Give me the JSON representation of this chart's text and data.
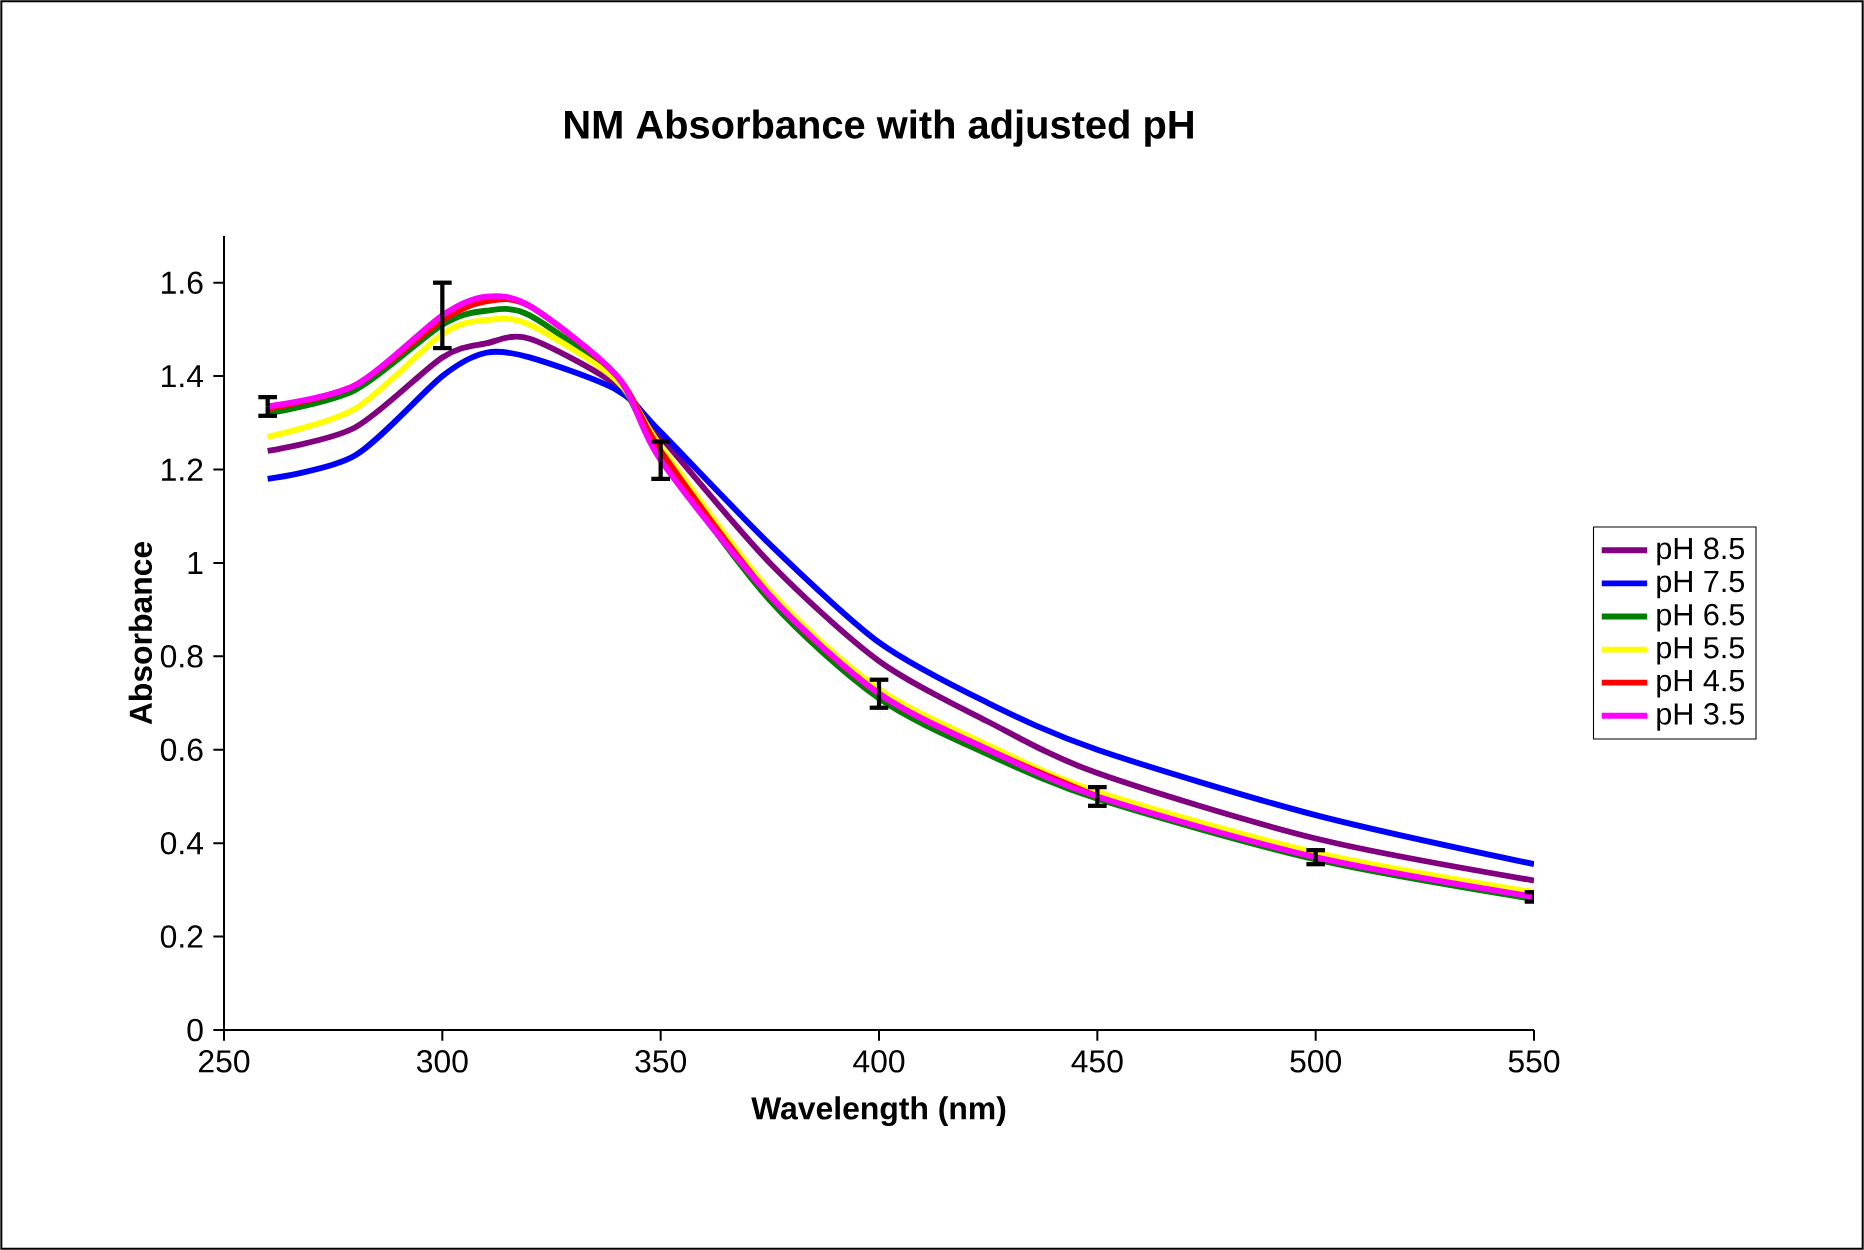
{
  "chart_data": {
    "type": "line",
    "title": "NM Absorbance with adjusted pH",
    "xlabel": "Wavelength (nm)",
    "ylabel": "Absorbance",
    "xlim": [
      250,
      550
    ],
    "xticks": [
      250,
      300,
      350,
      400,
      450,
      500,
      550
    ],
    "ylim": [
      0,
      1.7
    ],
    "yticks": [
      0,
      0.2,
      0.4,
      0.6,
      0.8,
      1,
      1.2,
      1.4,
      1.6
    ],
    "grid": false,
    "legend": "right",
    "marker": "none",
    "line_style": "solid",
    "x": [
      260,
      280,
      300,
      310,
      320,
      340,
      350,
      375,
      400,
      425,
      450,
      500,
      550
    ],
    "series": [
      {
        "name": "pH 8.5",
        "color": "#800080",
        "values": [
          1.24,
          1.29,
          1.44,
          1.47,
          1.48,
          1.38,
          1.27,
          1.0,
          0.79,
          0.66,
          0.55,
          0.41,
          0.32
        ]
      },
      {
        "name": "pH 7.5",
        "color": "#0000ff",
        "values": [
          1.18,
          1.23,
          1.4,
          1.45,
          1.44,
          1.37,
          1.28,
          1.04,
          0.83,
          0.7,
          0.6,
          0.46,
          0.355
        ]
      },
      {
        "name": "pH 6.5",
        "color": "#008000",
        "values": [
          1.32,
          1.37,
          1.51,
          1.54,
          1.53,
          1.39,
          1.23,
          0.92,
          0.71,
          0.59,
          0.495,
          0.365,
          0.28
        ]
      },
      {
        "name": "pH 5.5",
        "color": "#ffff00",
        "values": [
          1.27,
          1.33,
          1.49,
          1.52,
          1.51,
          1.39,
          1.25,
          0.94,
          0.73,
          0.61,
          0.51,
          0.38,
          0.295
        ]
      },
      {
        "name": "pH 4.5",
        "color": "#ff0000",
        "values": [
          1.33,
          1.38,
          1.52,
          1.56,
          1.55,
          1.4,
          1.24,
          0.93,
          0.72,
          0.6,
          0.5,
          null,
          null
        ]
      },
      {
        "name": "pH 3.5",
        "color": "#ff00ff",
        "values": [
          1.335,
          1.38,
          1.53,
          1.57,
          1.55,
          1.4,
          1.22,
          0.93,
          0.72,
          0.6,
          0.5,
          0.37,
          0.285
        ],
        "errors": [
          0.02,
          null,
          0.07,
          null,
          null,
          null,
          0.04,
          null,
          0.03,
          null,
          0.02,
          0.015,
          0.01
        ]
      }
    ]
  }
}
